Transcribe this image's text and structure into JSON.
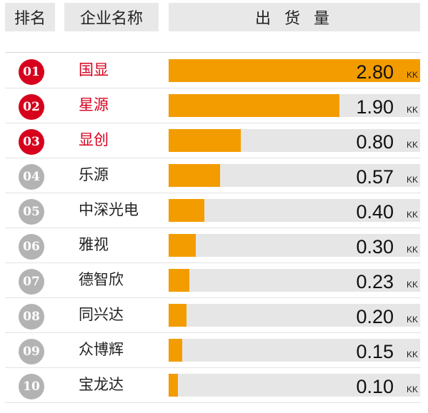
{
  "header": {
    "rank": "排名",
    "company": "企业名称",
    "shipment": "出 货 量"
  },
  "colors": {
    "bar_fill": "#f39c00",
    "bar_track": "#e6e6e6",
    "top_rank": "#d7001d",
    "other_rank": "#b3b3b3"
  },
  "chart_data": {
    "type": "bar",
    "orientation": "horizontal",
    "xlim": [
      0,
      2.8
    ],
    "unit": "KK",
    "rows": [
      {
        "rank": "01",
        "company": "国显",
        "value": 2.8,
        "value_label": "2.80",
        "highlight": true
      },
      {
        "rank": "02",
        "company": "星源",
        "value": 1.9,
        "value_label": "1.90",
        "highlight": true
      },
      {
        "rank": "03",
        "company": "显创",
        "value": 0.8,
        "value_label": "0.80",
        "highlight": true
      },
      {
        "rank": "04",
        "company": "乐源",
        "value": 0.57,
        "value_label": "0.57",
        "highlight": false
      },
      {
        "rank": "05",
        "company": "中深光电",
        "value": 0.4,
        "value_label": "0.40",
        "highlight": false
      },
      {
        "rank": "06",
        "company": "雅视",
        "value": 0.3,
        "value_label": "0.30",
        "highlight": false
      },
      {
        "rank": "07",
        "company": "德智欣",
        "value": 0.23,
        "value_label": "0.23",
        "highlight": false
      },
      {
        "rank": "08",
        "company": "同兴达",
        "value": 0.2,
        "value_label": "0.20",
        "highlight": false
      },
      {
        "rank": "09",
        "company": "众博辉",
        "value": 0.15,
        "value_label": "0.15",
        "highlight": false
      },
      {
        "rank": "10",
        "company": "宝龙达",
        "value": 0.1,
        "value_label": "0.10",
        "highlight": false
      }
    ]
  }
}
